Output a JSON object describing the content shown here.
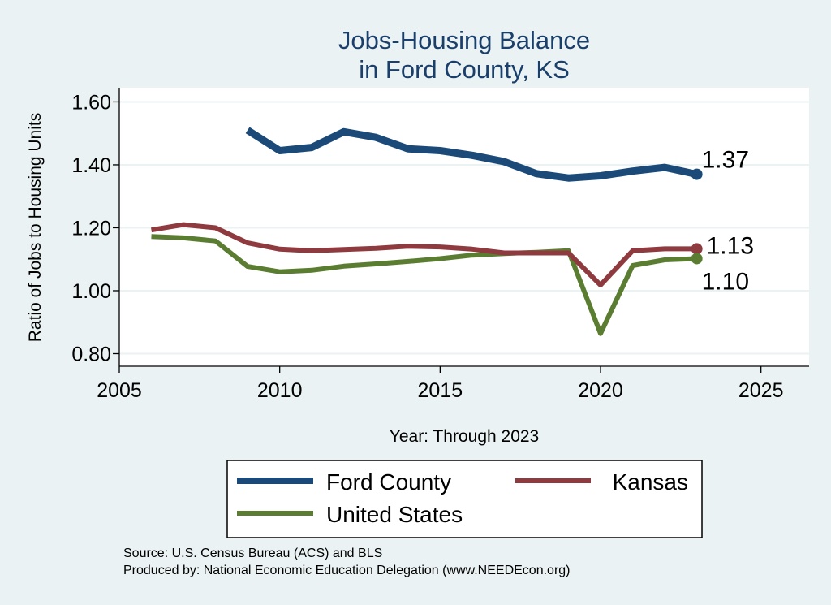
{
  "chart_data": {
    "type": "line",
    "title": [
      "Jobs-Housing Balance",
      "in Ford County, KS"
    ],
    "xlabel": "Year: Through 2023",
    "ylabel": "Ratio of Jobs to Housing Units",
    "xlim": [
      2005,
      2026.5
    ],
    "ylim": [
      0.76,
      1.645
    ],
    "xticks": [
      2005,
      2010,
      2015,
      2020,
      2025
    ],
    "yticks": [
      0.8,
      1.0,
      1.2,
      1.4,
      1.6
    ],
    "ytick_labels": [
      "0.80",
      "1.00",
      "1.20",
      "1.40",
      "1.60"
    ],
    "grid": true,
    "legend_position": "bottom",
    "series": [
      {
        "name": "Ford County",
        "color": "#1b4a79",
        "end_label": "1.37",
        "x": [
          2009,
          2010,
          2011,
          2012,
          2013,
          2014,
          2015,
          2016,
          2017,
          2018,
          2019,
          2020,
          2021,
          2022,
          2023
        ],
        "values": [
          1.51,
          1.445,
          1.455,
          1.505,
          1.487,
          1.451,
          1.445,
          1.43,
          1.41,
          1.372,
          1.358,
          1.365,
          1.38,
          1.392,
          1.37
        ]
      },
      {
        "name": "Kansas",
        "color": "#8e3a3e",
        "end_label": "1.13",
        "x": [
          2006,
          2007,
          2008,
          2009,
          2010,
          2011,
          2012,
          2013,
          2014,
          2015,
          2016,
          2017,
          2018,
          2019,
          2020,
          2021,
          2022,
          2023
        ],
        "values": [
          1.193,
          1.21,
          1.2,
          1.152,
          1.132,
          1.127,
          1.131,
          1.135,
          1.141,
          1.139,
          1.132,
          1.12,
          1.12,
          1.12,
          1.018,
          1.127,
          1.133,
          1.133
        ]
      },
      {
        "name": "United States",
        "color": "#5a7d32",
        "end_label": "1.10",
        "x": [
          2006,
          2007,
          2008,
          2009,
          2010,
          2011,
          2012,
          2013,
          2014,
          2015,
          2016,
          2017,
          2018,
          2019,
          2020,
          2021,
          2022,
          2023
        ],
        "values": [
          1.172,
          1.168,
          1.158,
          1.077,
          1.06,
          1.065,
          1.078,
          1.085,
          1.093,
          1.102,
          1.113,
          1.118,
          1.122,
          1.127,
          0.864,
          1.08,
          1.098,
          1.102
        ]
      }
    ],
    "source": [
      "Source: U.S. Census Bureau (ACS) and BLS",
      "Produced by: National Economic Education Delegation (www.NEEDEcon.org)"
    ]
  }
}
